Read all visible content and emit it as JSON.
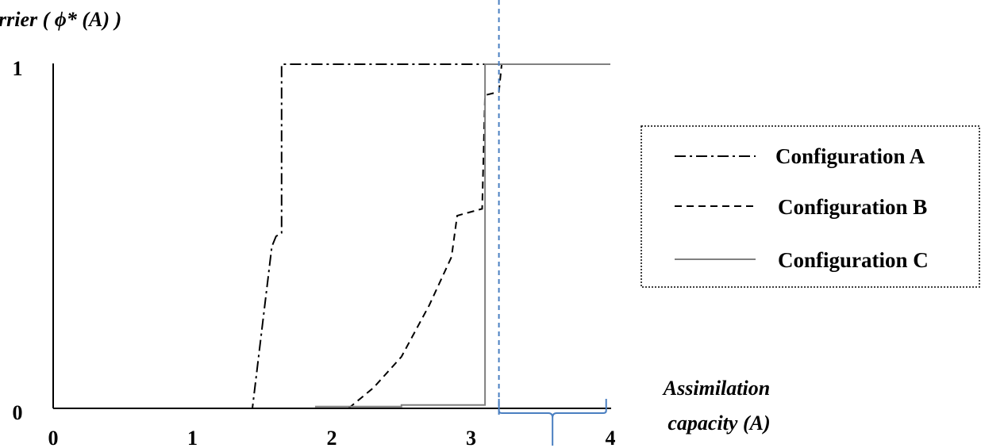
{
  "chart_data": {
    "type": "line",
    "ylabel": "rrier ( ϕ* (A) )",
    "xlabel": [
      "Assimilation",
      "capacity (A)"
    ],
    "xlim": [
      0,
      4
    ],
    "ylim": [
      0,
      1
    ],
    "x_ticks": [
      "0",
      "1",
      "2",
      "3",
      "4"
    ],
    "y_ticks": [
      "0",
      "1"
    ],
    "grid": false,
    "legend_position": "right",
    "threshold_line": {
      "x": 3.2,
      "style": "dashed",
      "color": "#4a7fc1"
    },
    "brace": {
      "x_from": 3.2,
      "x_to": 3.97,
      "color": "#4a7fc1"
    },
    "series": [
      {
        "name": "Configuration A",
        "style": "dash-dot",
        "color": "#000000",
        "points": [
          [
            0,
            0
          ],
          [
            1.43,
            0
          ],
          [
            1.57,
            0.47
          ],
          [
            1.6,
            0.5
          ],
          [
            1.64,
            0.51
          ],
          [
            1.64,
            1.0
          ],
          [
            4,
            1.0
          ]
        ]
      },
      {
        "name": "Configuration B",
        "style": "dashed",
        "color": "#000000",
        "points": [
          [
            2.12,
            0
          ],
          [
            2.3,
            0.06
          ],
          [
            2.5,
            0.15
          ],
          [
            2.7,
            0.3
          ],
          [
            2.86,
            0.44
          ],
          [
            2.9,
            0.56
          ],
          [
            3.08,
            0.58
          ],
          [
            3.1,
            0.91
          ],
          [
            3.2,
            0.92
          ],
          [
            3.22,
            1.0
          ],
          [
            4,
            1.0
          ]
        ]
      },
      {
        "name": "Configuration C",
        "style": "solid",
        "color": "#808080",
        "points": [
          [
            1.88,
            0.005
          ],
          [
            2.5,
            0.005
          ],
          [
            2.5,
            0.01
          ],
          [
            3.1,
            0.01
          ],
          [
            3.1,
            1.0
          ],
          [
            4,
            1.0
          ]
        ]
      }
    ]
  }
}
